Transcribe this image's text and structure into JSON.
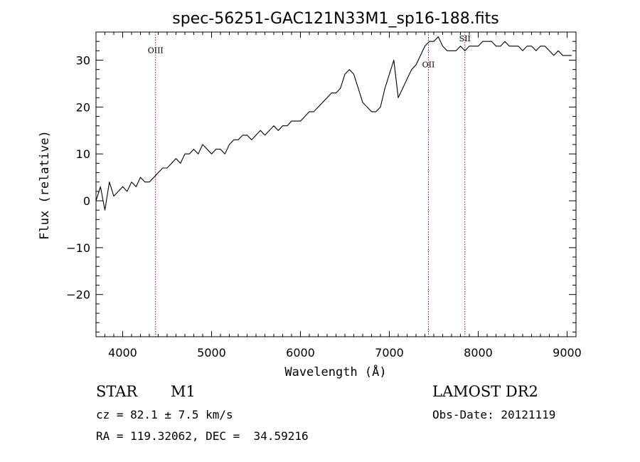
{
  "chart_data": {
    "type": "line",
    "title": "spec-56251-GAC121N33M1_sp16-188.fits",
    "xlabel": "Wavelength (Å)",
    "ylabel": "Flux (relative)",
    "xlim": [
      3700,
      9100
    ],
    "ylim": [
      -29,
      36
    ],
    "x_ticks": [
      4000,
      5000,
      6000,
      7000,
      8000,
      9000
    ],
    "y_ticks": [
      -20,
      -10,
      0,
      10,
      20,
      30
    ],
    "grid": false,
    "series": [
      {
        "x": [
          3700,
          3750,
          3800,
          3850,
          3900,
          3950,
          4000,
          4050,
          4100,
          4150,
          4200,
          4250,
          4300,
          4350,
          4400,
          4450,
          4500,
          4550,
          4600,
          4650,
          4700,
          4750,
          4800,
          4850,
          4900,
          4950,
          5000,
          5050,
          5100,
          5150,
          5200,
          5250,
          5300,
          5350,
          5400,
          5450,
          5500,
          5550,
          5600,
          5650,
          5700,
          5750,
          5800,
          5850,
          5900,
          5950,
          6000,
          6050,
          6100,
          6150,
          6200,
          6250,
          6300,
          6350,
          6400,
          6450,
          6500,
          6550,
          6600,
          6650,
          6700,
          6750,
          6800,
          6850,
          6900,
          6950,
          7000,
          7050,
          7100,
          7150,
          7200,
          7250,
          7300,
          7350,
          7400,
          7450,
          7500,
          7550,
          7600,
          7650,
          7700,
          7750,
          7800,
          7850,
          7900,
          7950,
          8000,
          8050,
          8100,
          8150,
          8200,
          8250,
          8300,
          8350,
          8400,
          8450,
          8500,
          8550,
          8600,
          8650,
          8700,
          8750,
          8800,
          8850,
          8900,
          8950,
          9000,
          9050
        ],
        "y": [
          0,
          3,
          -2,
          4,
          1,
          2,
          3,
          2,
          4,
          3,
          5,
          4,
          4,
          5,
          6,
          7,
          7,
          8,
          9,
          8,
          10,
          10,
          11,
          10,
          12,
          11,
          10,
          11,
          11,
          10,
          12,
          13,
          13,
          14,
          14,
          13,
          14,
          15,
          14,
          15,
          16,
          15,
          16,
          16,
          17,
          17,
          17,
          18,
          19,
          19,
          20,
          21,
          22,
          23,
          23,
          24,
          27,
          28,
          27,
          24,
          21,
          20,
          19,
          19,
          20,
          24,
          27,
          30,
          22,
          24,
          26,
          28,
          29,
          31,
          33,
          34,
          34,
          35,
          33,
          32,
          32,
          32,
          33,
          32,
          33,
          33,
          33,
          34,
          34,
          34,
          33,
          33,
          34,
          33,
          33,
          33,
          32,
          33,
          33,
          32,
          33,
          33,
          32,
          31,
          32,
          31,
          31,
          31
        ]
      }
    ],
    "spectral_lines": [
      {
        "label": "OIII",
        "x": 4370
      },
      {
        "label": "OII",
        "x": 7440
      },
      {
        "label": "SII",
        "x": 7850
      }
    ],
    "line_color": "#000000",
    "marker_color": "#a00000"
  },
  "info": {
    "object_class": "STAR",
    "subclass": "M1",
    "survey": "LAMOST DR2",
    "cz": "cz = 82.1 ± 7.5 km/s",
    "obs_date": "Obs-Date: 20121119",
    "coords": "RA = 119.32062, DEC =  34.59216"
  }
}
